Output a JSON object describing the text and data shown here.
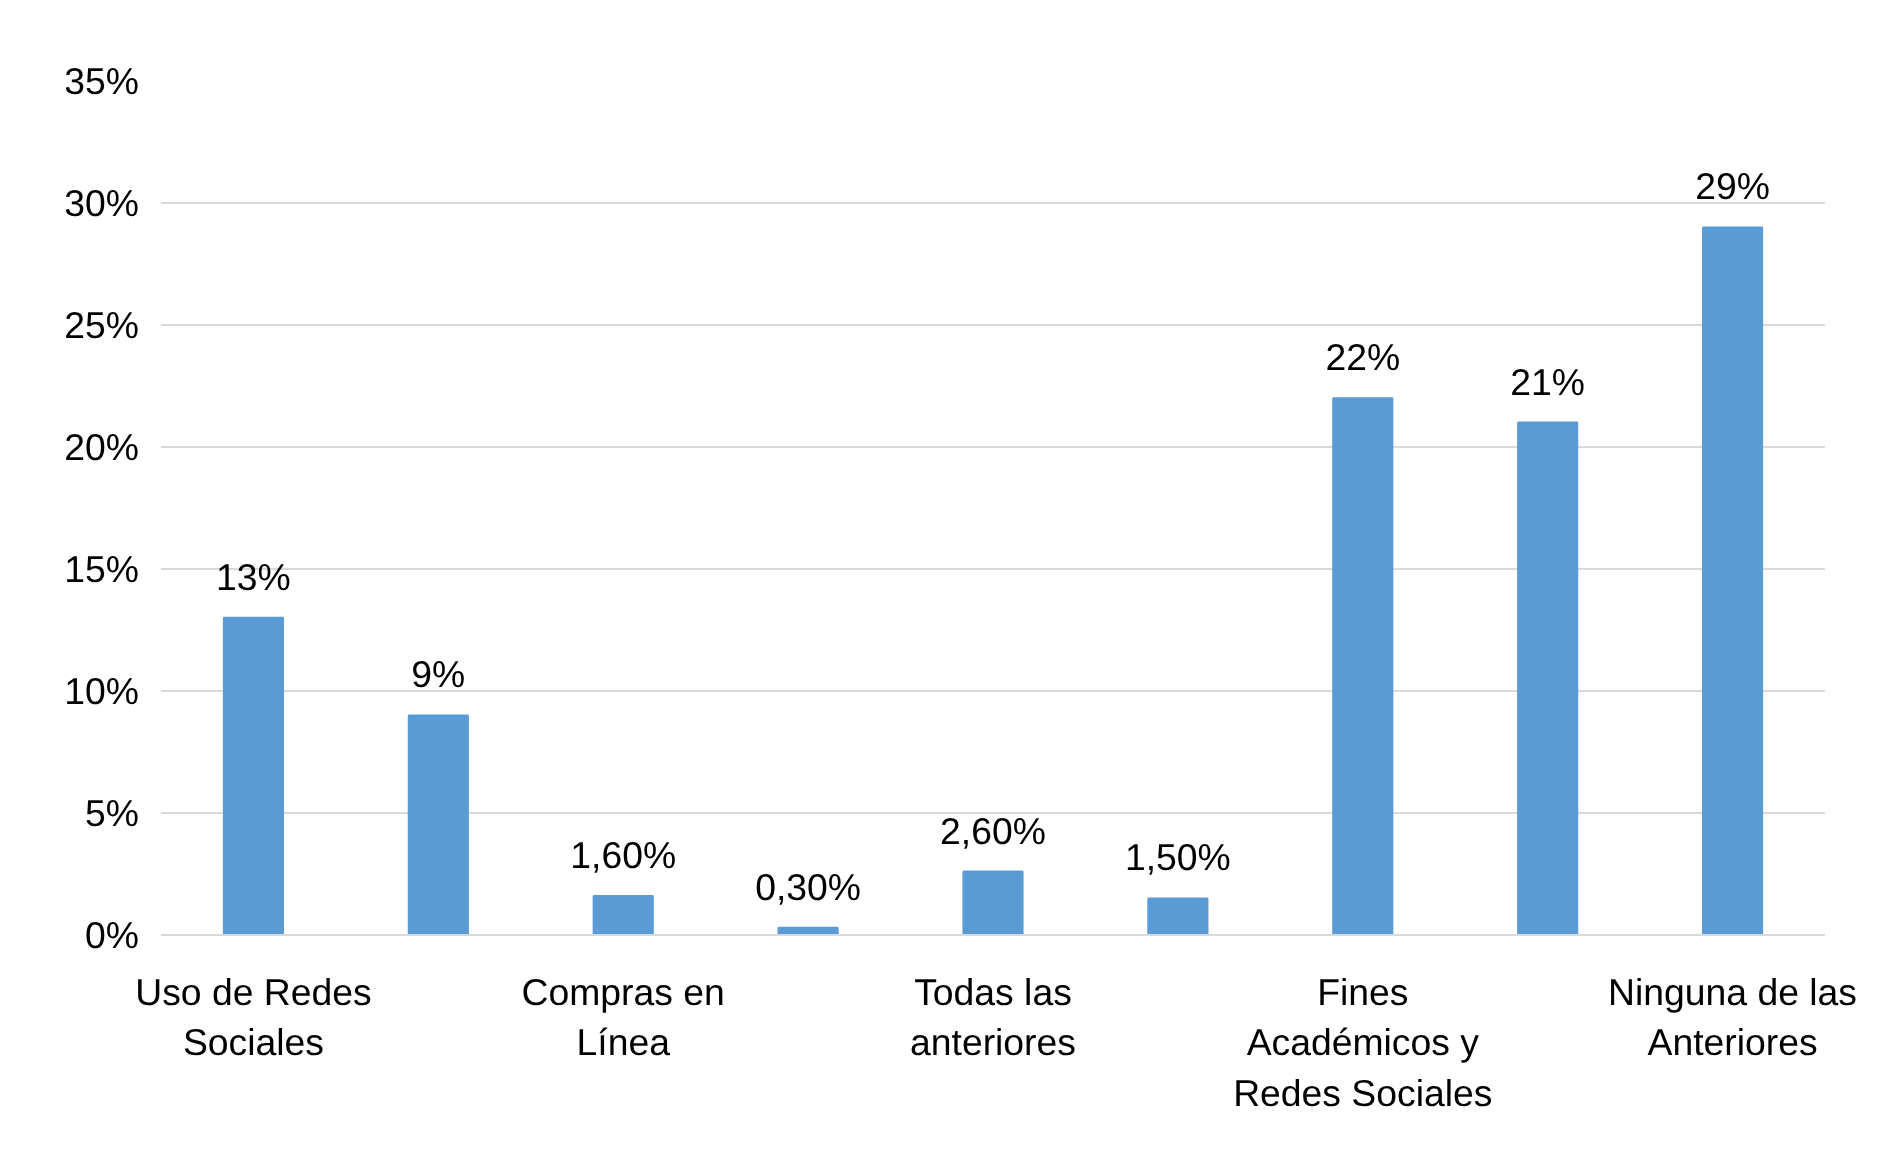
{
  "chart_data": {
    "type": "bar",
    "categories": [
      "Uso de Redes Sociales",
      null,
      "Compras en Línea",
      null,
      "Todas las anteriores",
      null,
      "Fines Académicos y Redes Sociales",
      null,
      "Ninguna de las Anteriores"
    ],
    "values": [
      13,
      9,
      1.6,
      0.3,
      2.6,
      1.5,
      22,
      21,
      29
    ],
    "value_labels": [
      "13%",
      "9%",
      "1,60%",
      "0,30%",
      "2,60%",
      "1,50%",
      "22%",
      "21%",
      "29%"
    ],
    "color": "#5b9bd5",
    "ylim": [
      0,
      35
    ],
    "yticks": [
      {
        "value": 0,
        "label": "0%"
      },
      {
        "value": 5,
        "label": "5%"
      },
      {
        "value": 10,
        "label": "10%"
      },
      {
        "value": 15,
        "label": "15%"
      },
      {
        "value": 20,
        "label": "20%"
      },
      {
        "value": 25,
        "label": "25%"
      },
      {
        "value": 30,
        "label": "30%"
      },
      {
        "value": 35,
        "label": "35%"
      }
    ],
    "grid": "y"
  }
}
